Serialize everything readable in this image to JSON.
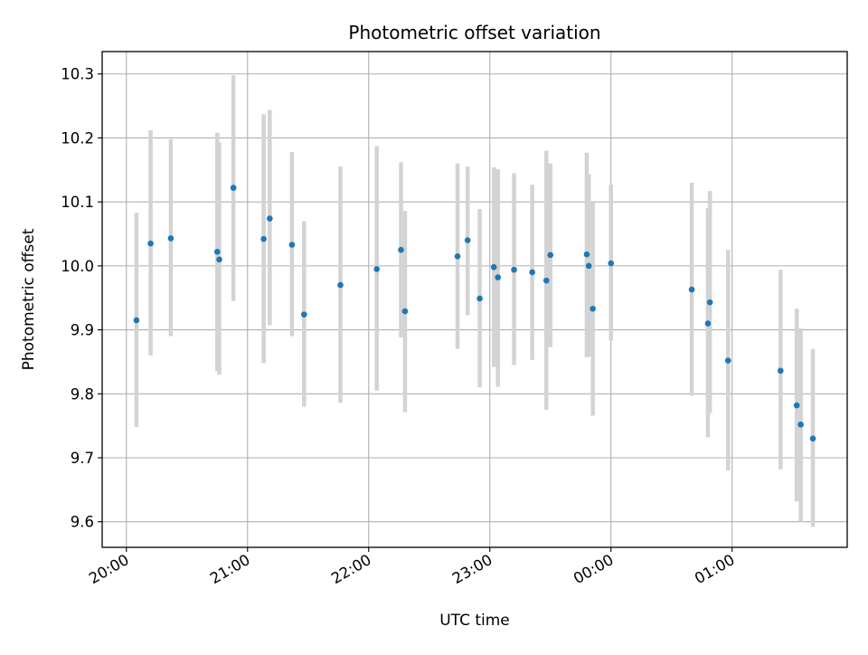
{
  "chart_data": {
    "type": "scatter",
    "title": "Photometric offset variation",
    "xlabel": "UTC time",
    "ylabel": "Photometric offset",
    "x_ticks": [
      "20:00",
      "21:00",
      "22:00",
      "23:00",
      "00:00",
      "01:00"
    ],
    "y_ticks": [
      "9.6",
      "9.7",
      "9.8",
      "9.9",
      "10.0",
      "10.1",
      "10.2",
      "10.3"
    ],
    "xlim": [
      "19:48",
      "01:57"
    ],
    "ylim": [
      9.56,
      10.335
    ],
    "grid": true,
    "marker_color": "#1f77b4",
    "errorbar_color": "#d3d3d3",
    "points": [
      {
        "t": "20:05",
        "y": 9.915,
        "lo": 9.748,
        "hi": 10.083
      },
      {
        "t": "20:12",
        "y": 10.035,
        "lo": 9.86,
        "hi": 10.212
      },
      {
        "t": "20:22",
        "y": 10.043,
        "lo": 9.89,
        "hi": 10.198
      },
      {
        "t": "20:45",
        "y": 10.022,
        "lo": 9.835,
        "hi": 10.208
      },
      {
        "t": "20:46",
        "y": 10.01,
        "lo": 9.83,
        "hi": 10.193
      },
      {
        "t": "20:53",
        "y": 10.122,
        "lo": 9.945,
        "hi": 10.298
      },
      {
        "t": "21:08",
        "y": 10.042,
        "lo": 9.848,
        "hi": 10.237
      },
      {
        "t": "21:11",
        "y": 10.074,
        "lo": 9.907,
        "hi": 10.244
      },
      {
        "t": "21:22",
        "y": 10.033,
        "lo": 9.89,
        "hi": 10.178
      },
      {
        "t": "21:28",
        "y": 9.924,
        "lo": 9.78,
        "hi": 10.07
      },
      {
        "t": "21:46",
        "y": 9.97,
        "lo": 9.786,
        "hi": 10.155
      },
      {
        "t": "22:04",
        "y": 9.995,
        "lo": 9.805,
        "hi": 10.187
      },
      {
        "t": "22:16",
        "y": 10.025,
        "lo": 9.888,
        "hi": 10.162
      },
      {
        "t": "22:18",
        "y": 9.929,
        "lo": 9.771,
        "hi": 10.086
      },
      {
        "t": "22:44",
        "y": 10.015,
        "lo": 9.87,
        "hi": 10.16
      },
      {
        "t": "22:49",
        "y": 10.04,
        "lo": 9.923,
        "hi": 10.155
      },
      {
        "t": "22:55",
        "y": 9.949,
        "lo": 9.81,
        "hi": 10.089
      },
      {
        "t": "23:02",
        "y": 9.998,
        "lo": 9.842,
        "hi": 10.154
      },
      {
        "t": "23:04",
        "y": 9.982,
        "lo": 9.811,
        "hi": 10.151
      },
      {
        "t": "23:12",
        "y": 9.994,
        "lo": 9.845,
        "hi": 10.145
      },
      {
        "t": "23:21",
        "y": 9.99,
        "lo": 9.853,
        "hi": 10.127
      },
      {
        "t": "23:28",
        "y": 9.977,
        "lo": 9.775,
        "hi": 10.18
      },
      {
        "t": "23:30",
        "y": 10.017,
        "lo": 9.873,
        "hi": 10.16
      },
      {
        "t": "23:48",
        "y": 10.018,
        "lo": 9.857,
        "hi": 10.177
      },
      {
        "t": "23:49",
        "y": 10.0,
        "lo": 9.858,
        "hi": 10.143
      },
      {
        "t": "23:51",
        "y": 9.933,
        "lo": 9.766,
        "hi": 10.1
      },
      {
        "t": "00:00",
        "y": 10.004,
        "lo": 9.883,
        "hi": 10.127
      },
      {
        "t": "00:40",
        "y": 9.963,
        "lo": 9.797,
        "hi": 10.13
      },
      {
        "t": "00:48",
        "y": 9.91,
        "lo": 9.732,
        "hi": 10.09
      },
      {
        "t": "00:49",
        "y": 9.943,
        "lo": 9.77,
        "hi": 10.117
      },
      {
        "t": "00:58",
        "y": 9.852,
        "lo": 9.68,
        "hi": 10.025
      },
      {
        "t": "01:24",
        "y": 9.836,
        "lo": 9.682,
        "hi": 9.994
      },
      {
        "t": "01:32",
        "y": 9.782,
        "lo": 9.632,
        "hi": 9.933
      },
      {
        "t": "01:34",
        "y": 9.752,
        "lo": 9.6,
        "hi": 9.902
      },
      {
        "t": "01:40",
        "y": 9.73,
        "lo": 9.592,
        "hi": 9.87
      }
    ]
  }
}
